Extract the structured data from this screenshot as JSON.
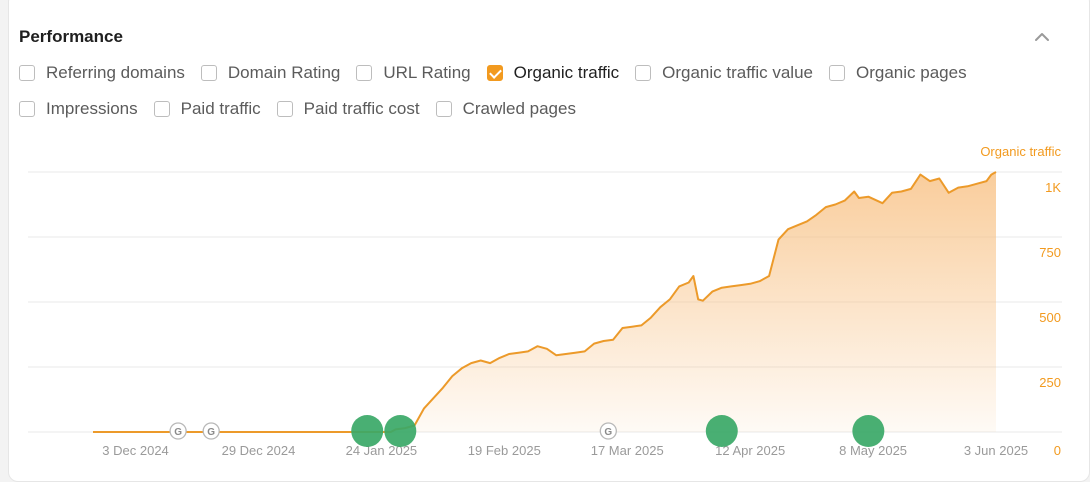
{
  "section": {
    "title": "Performance"
  },
  "metrics": [
    {
      "label": "Referring domains",
      "checked": false
    },
    {
      "label": "Domain Rating",
      "checked": false
    },
    {
      "label": "URL Rating",
      "checked": false
    },
    {
      "label": "Organic traffic",
      "checked": true
    },
    {
      "label": "Organic traffic value",
      "checked": false
    },
    {
      "label": "Organic pages",
      "checked": false
    },
    {
      "label": "Impressions",
      "checked": false
    },
    {
      "label": "Paid traffic",
      "checked": false
    },
    {
      "label": "Paid traffic cost",
      "checked": false
    },
    {
      "label": "Crawled pages",
      "checked": false
    }
  ],
  "colors": {
    "series": "#ec9a2a",
    "series_fill_top": "#f8c48a",
    "grid": "#e8e8e8",
    "axis_y": "#f29a1f",
    "axis_x": "#9a9a9a",
    "event_green": "#3aa867",
    "google_marker": "#b8b8b8"
  },
  "chart_data": {
    "type": "area",
    "series": [
      {
        "name": "Organic traffic",
        "points": [
          [
            "2024-11-24",
            0
          ],
          [
            "2024-12-10",
            0
          ],
          [
            "2024-12-30",
            0
          ],
          [
            "2025-01-15",
            0
          ],
          [
            "2025-01-26",
            0
          ],
          [
            "2025-01-27",
            10
          ],
          [
            "2025-01-29",
            15
          ],
          [
            "2025-01-31",
            25
          ],
          [
            "2025-02-02",
            90
          ],
          [
            "2025-02-04",
            130
          ],
          [
            "2025-02-06",
            170
          ],
          [
            "2025-02-08",
            215
          ],
          [
            "2025-02-10",
            245
          ],
          [
            "2025-02-12",
            265
          ],
          [
            "2025-02-14",
            275
          ],
          [
            "2025-02-16",
            265
          ],
          [
            "2025-02-18",
            285
          ],
          [
            "2025-02-20",
            300
          ],
          [
            "2025-02-22",
            305
          ],
          [
            "2025-02-24",
            310
          ],
          [
            "2025-02-26",
            330
          ],
          [
            "2025-02-28",
            320
          ],
          [
            "2025-03-02",
            295
          ],
          [
            "2025-03-04",
            300
          ],
          [
            "2025-03-06",
            305
          ],
          [
            "2025-03-08",
            310
          ],
          [
            "2025-03-10",
            340
          ],
          [
            "2025-03-12",
            350
          ],
          [
            "2025-03-14",
            355
          ],
          [
            "2025-03-16",
            400
          ],
          [
            "2025-03-18",
            405
          ],
          [
            "2025-03-20",
            410
          ],
          [
            "2025-03-22",
            440
          ],
          [
            "2025-03-24",
            480
          ],
          [
            "2025-03-26",
            510
          ],
          [
            "2025-03-28",
            560
          ],
          [
            "2025-03-30",
            575
          ],
          [
            "2025-03-31",
            600
          ],
          [
            "2025-04-01",
            510
          ],
          [
            "2025-04-02",
            505
          ],
          [
            "2025-04-04",
            540
          ],
          [
            "2025-04-06",
            555
          ],
          [
            "2025-04-08",
            560
          ],
          [
            "2025-04-10",
            565
          ],
          [
            "2025-04-12",
            570
          ],
          [
            "2025-04-14",
            580
          ],
          [
            "2025-04-16",
            600
          ],
          [
            "2025-04-18",
            740
          ],
          [
            "2025-04-20",
            780
          ],
          [
            "2025-04-22",
            795
          ],
          [
            "2025-04-24",
            810
          ],
          [
            "2025-04-26",
            835
          ],
          [
            "2025-04-28",
            865
          ],
          [
            "2025-04-30",
            875
          ],
          [
            "2025-05-02",
            890
          ],
          [
            "2025-05-04",
            925
          ],
          [
            "2025-05-05",
            900
          ],
          [
            "2025-05-07",
            905
          ],
          [
            "2025-05-10",
            880
          ],
          [
            "2025-05-12",
            920
          ],
          [
            "2025-05-14",
            925
          ],
          [
            "2025-05-16",
            935
          ],
          [
            "2025-05-18",
            990
          ],
          [
            "2025-05-20",
            965
          ],
          [
            "2025-05-22",
            975
          ],
          [
            "2025-05-24",
            920
          ],
          [
            "2025-05-26",
            940
          ],
          [
            "2025-05-28",
            945
          ],
          [
            "2025-05-30",
            955
          ],
          [
            "2025-06-01",
            965
          ],
          [
            "2025-06-02",
            990
          ],
          [
            "2025-06-03",
            1000
          ]
        ]
      }
    ],
    "x_ticks": [
      "3 Dec 2024",
      "29 Dec 2024",
      "24 Jan 2025",
      "19 Feb 2025",
      "17 Mar 2025",
      "12 Apr 2025",
      "8 May 2025",
      "3 Jun 2025"
    ],
    "y_ticks": [
      "0",
      "250",
      "500",
      "750",
      "1K"
    ],
    "y_axis_title": "Organic traffic",
    "ylim": [
      0,
      1000
    ],
    "xlim": [
      "2024-11-24",
      "2025-06-03"
    ],
    "grid": true,
    "google_updates": [
      "2024-12-12",
      "2024-12-19",
      "2025-03-13"
    ],
    "events": [
      "2025-01-21",
      "2025-01-28",
      "2025-04-06",
      "2025-05-07"
    ]
  }
}
